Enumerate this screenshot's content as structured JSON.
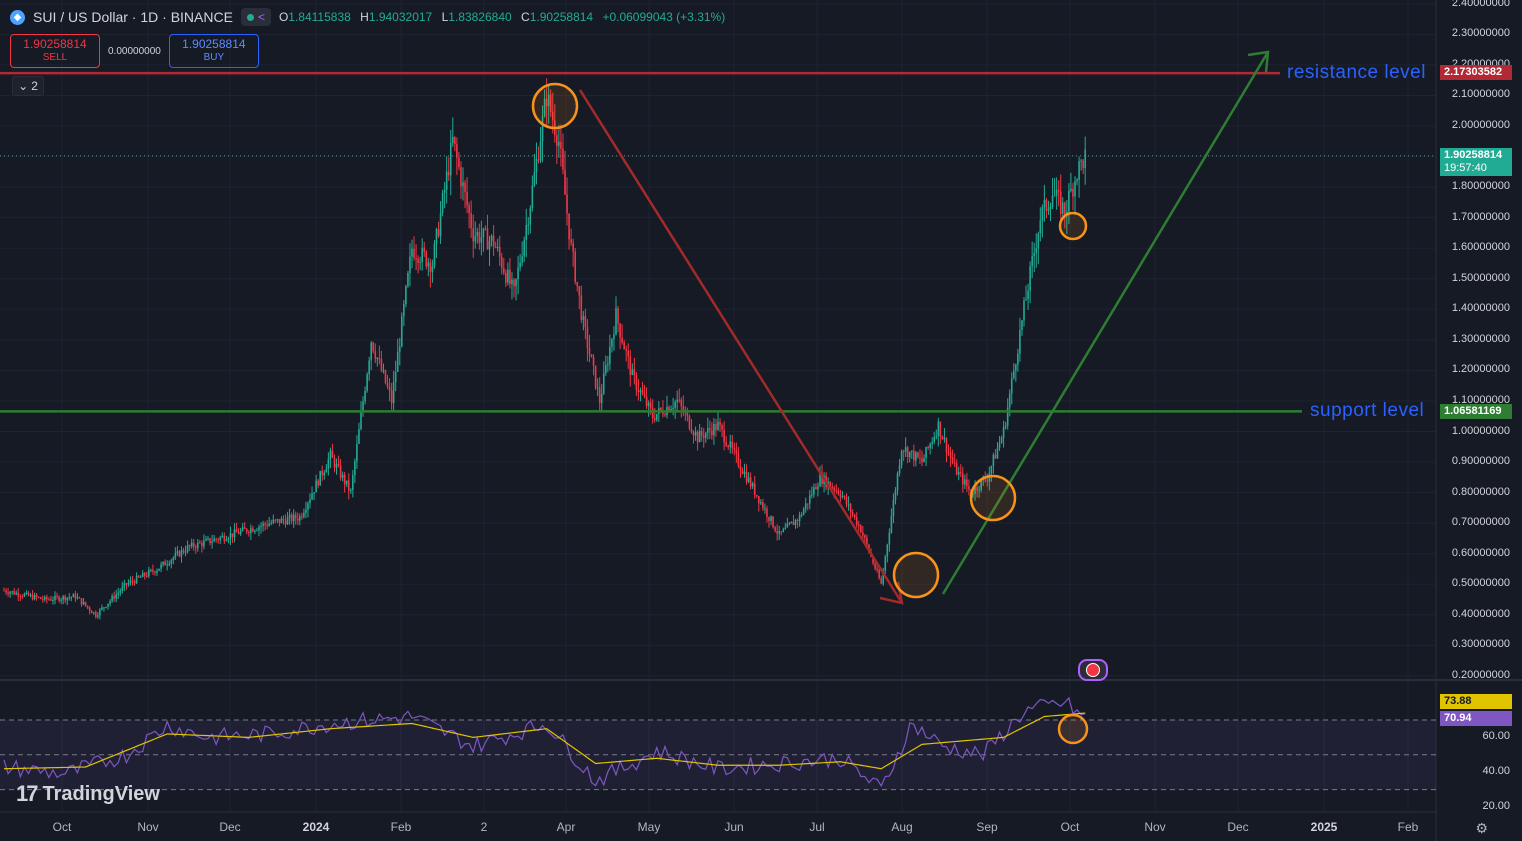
{
  "header": {
    "symbol": "SUI / US Dollar · 1D · BINANCE",
    "logo_icon": "sui-logo-icon",
    "open_label": "O",
    "open": "1.84115838",
    "high_label": "H",
    "high": "1.94032017",
    "low_label": "L",
    "low": "1.83826840",
    "close_label": "C",
    "close": "1.90258814",
    "change": "+0.06099043 (+3.31%)"
  },
  "trade": {
    "sell_price": "1.90258814",
    "sell_label": "SELL",
    "spread": "0.00000000",
    "buy_price": "1.90258814",
    "buy_label": "BUY"
  },
  "indicators_collapse": {
    "count": "2"
  },
  "price_axis": {
    "ticks": [
      "2.40000000",
      "2.30000000",
      "2.20000000",
      "2.10000000",
      "2.00000000",
      "1.90000000",
      "1.80000000",
      "1.70000000",
      "1.60000000",
      "1.50000000",
      "1.40000000",
      "1.30000000",
      "1.20000000",
      "1.10000000",
      "1.00000000",
      "0.90000000",
      "0.80000000",
      "0.70000000",
      "0.60000000",
      "0.50000000",
      "0.40000000",
      "0.30000000",
      "0.20000000"
    ],
    "tick_values": [
      2.4,
      2.3,
      2.2,
      2.1,
      2.0,
      1.9,
      1.8,
      1.7,
      1.6,
      1.5,
      1.4,
      1.3,
      1.2,
      1.1,
      1.0,
      0.9,
      0.8,
      0.7,
      0.6,
      0.5,
      0.4,
      0.3,
      0.2
    ]
  },
  "badges": {
    "resistance": "2.17303582",
    "current": "1.90258814",
    "countdown": "19:57:40",
    "support": "1.06581169",
    "rsi_ma": "73.88",
    "rsi": "70.94"
  },
  "levels": {
    "resistance_label": "resistance level",
    "resistance_value": 2.17303582,
    "support_label": "support level",
    "support_value": 1.06581169
  },
  "rsi_axis": {
    "ticks": [
      "60.00",
      "40.00",
      "20.00"
    ],
    "tick_values": [
      60,
      40,
      20
    ],
    "upper": 70,
    "middle": 50,
    "lower": 30
  },
  "time_axis": [
    {
      "label": "Oct"
    },
    {
      "label": "Nov"
    },
    {
      "label": "Dec"
    },
    {
      "label": "2024",
      "bold": true
    },
    {
      "label": "Feb"
    },
    {
      "label": "2"
    },
    {
      "label": "Apr"
    },
    {
      "label": "May"
    },
    {
      "label": "Jun"
    },
    {
      "label": "Jul"
    },
    {
      "label": "Aug"
    },
    {
      "label": "Sep"
    },
    {
      "label": "Oct"
    },
    {
      "label": "Nov"
    },
    {
      "label": "Dec"
    },
    {
      "label": "2025",
      "bold": true
    },
    {
      "label": "Feb"
    }
  ],
  "branding": {
    "name": "TradingView"
  },
  "colors": {
    "up": "#22ab94",
    "down": "#f23645",
    "resistance": "#b22833",
    "support": "#2e7d32",
    "down_arrow": "#a32a2a",
    "up_arrow": "#2e7d32",
    "circle": "#f7931a",
    "rsi": "#7e57c2",
    "rsi_ma": "#e0c400"
  },
  "chart_data": {
    "type": "candlestick",
    "price_path": [
      [
        0,
        0.48
      ],
      [
        20,
        0.45
      ],
      [
        35,
        0.46
      ],
      [
        45,
        0.4
      ],
      [
        60,
        0.5
      ],
      [
        75,
        0.55
      ],
      [
        90,
        0.62
      ],
      [
        110,
        0.66
      ],
      [
        130,
        0.7
      ],
      [
        145,
        0.72
      ],
      [
        160,
        0.92
      ],
      [
        170,
        0.8
      ],
      [
        180,
        1.3
      ],
      [
        190,
        1.1
      ],
      [
        200,
        1.6
      ],
      [
        210,
        1.55
      ],
      [
        220,
        1.95
      ],
      [
        230,
        1.65
      ],
      [
        240,
        1.62
      ],
      [
        250,
        1.45
      ],
      [
        258,
        1.75
      ],
      [
        266,
        2.1
      ],
      [
        272,
        1.95
      ],
      [
        278,
        1.6
      ],
      [
        284,
        1.35
      ],
      [
        292,
        1.1
      ],
      [
        300,
        1.38
      ],
      [
        308,
        1.18
      ],
      [
        318,
        1.05
      ],
      [
        330,
        1.1
      ],
      [
        340,
        0.98
      ],
      [
        350,
        1.02
      ],
      [
        360,
        0.9
      ],
      [
        370,
        0.78
      ],
      [
        380,
        0.66
      ],
      [
        390,
        0.72
      ],
      [
        400,
        0.85
      ],
      [
        410,
        0.8
      ],
      [
        420,
        0.68
      ],
      [
        430,
        0.5
      ],
      [
        440,
        0.95
      ],
      [
        450,
        0.9
      ],
      [
        458,
        1.02
      ],
      [
        466,
        0.88
      ],
      [
        474,
        0.8
      ],
      [
        482,
        0.85
      ],
      [
        490,
        1.0
      ],
      [
        500,
        1.4
      ],
      [
        508,
        1.7
      ],
      [
        514,
        1.78
      ],
      [
        520,
        1.72
      ],
      [
        526,
        1.85
      ],
      [
        530,
        1.9
      ]
    ],
    "rsi_path": [
      [
        0,
        43
      ],
      [
        30,
        39
      ],
      [
        60,
        50
      ],
      [
        80,
        67
      ],
      [
        100,
        60
      ],
      [
        130,
        62
      ],
      [
        160,
        68
      ],
      [
        200,
        72
      ],
      [
        230,
        55
      ],
      [
        266,
        68
      ],
      [
        290,
        35
      ],
      [
        320,
        52
      ],
      [
        350,
        42
      ],
      [
        380,
        45
      ],
      [
        410,
        48
      ],
      [
        430,
        30
      ],
      [
        445,
        68
      ],
      [
        460,
        55
      ],
      [
        480,
        50
      ],
      [
        500,
        75
      ],
      [
        520,
        80
      ],
      [
        530,
        71
      ]
    ],
    "rsi_ma_path": [
      [
        0,
        42
      ],
      [
        40,
        43
      ],
      [
        80,
        62
      ],
      [
        120,
        60
      ],
      [
        160,
        65
      ],
      [
        200,
        68
      ],
      [
        230,
        60
      ],
      [
        266,
        65
      ],
      [
        290,
        45
      ],
      [
        320,
        48
      ],
      [
        350,
        44
      ],
      [
        380,
        44
      ],
      [
        410,
        46
      ],
      [
        430,
        42
      ],
      [
        450,
        56
      ],
      [
        470,
        58
      ],
      [
        490,
        60
      ],
      [
        510,
        72
      ],
      [
        530,
        74
      ]
    ]
  },
  "annotations": {
    "circles": [
      "circle-top",
      "circle-bottom",
      "circle-higher-low",
      "circle-pullback",
      "circle-rsi"
    ],
    "arrows": [
      "down-trend-arrow",
      "up-trend-arrow"
    ]
  }
}
